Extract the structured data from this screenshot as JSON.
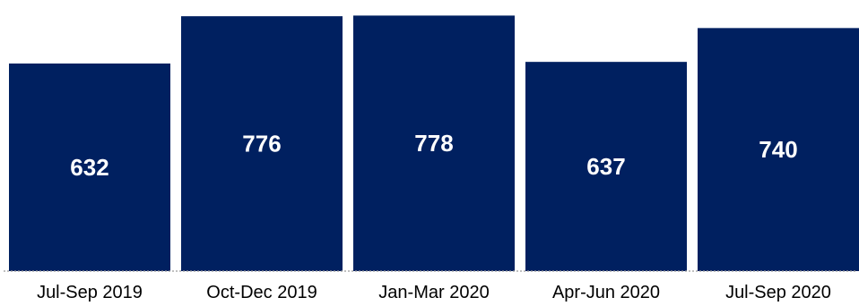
{
  "chart_data": {
    "type": "bar",
    "title": "",
    "xlabel": "",
    "ylabel": "",
    "categories": [
      "Jul-Sep 2019",
      "Oct-Dec 2019",
      "Jan-Mar 2020",
      "Apr-Jun 2020",
      "Jul-Sep 2020"
    ],
    "values": [
      632,
      776,
      778,
      637,
      740
    ],
    "ylim": [
      0,
      790
    ],
    "grid": false,
    "legend": "none",
    "data_labels": "inside",
    "colors": {
      "bar": "#002060",
      "label": "#ffffff",
      "axis_text": "#000000"
    }
  }
}
